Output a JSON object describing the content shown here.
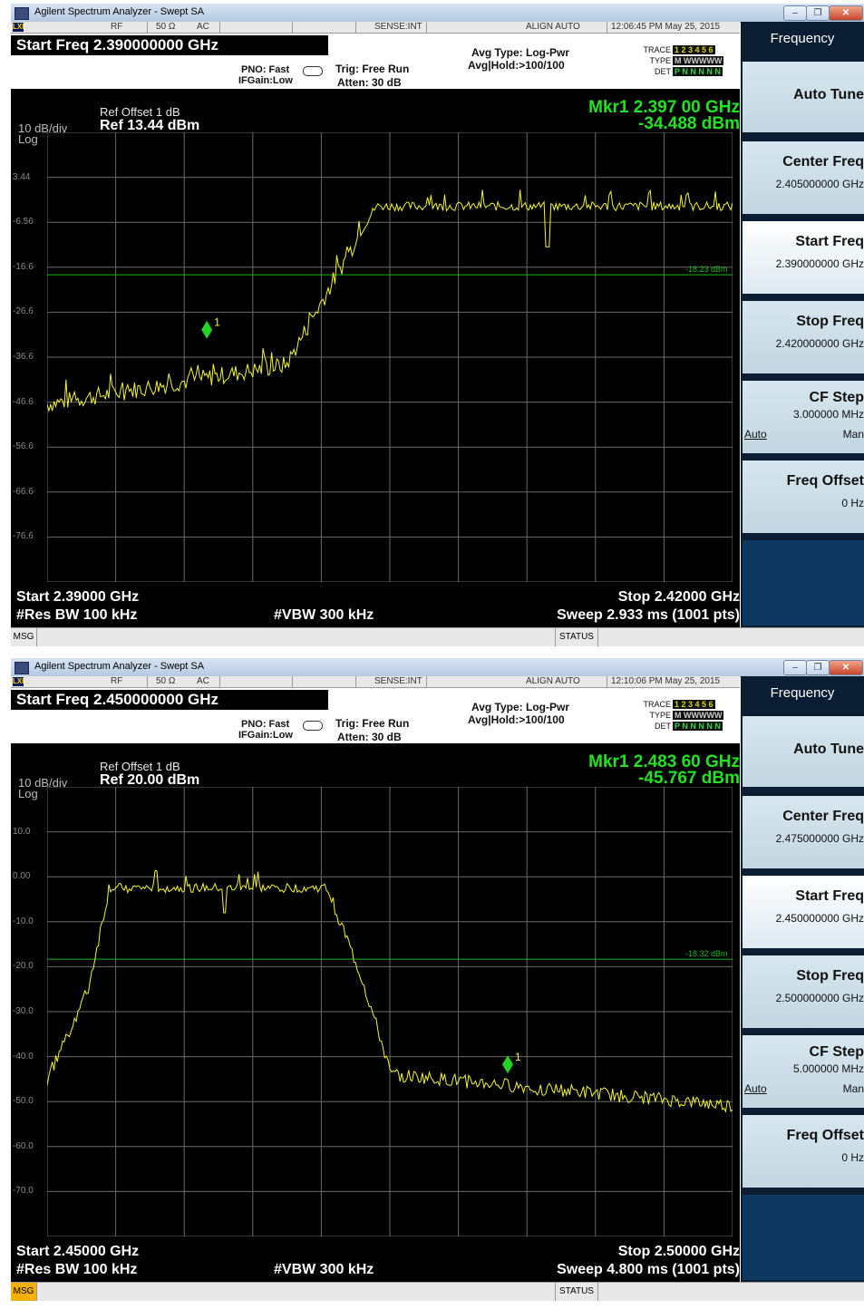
{
  "panels": [
    {
      "window_title": "Agilent Spectrum Analyzer - Swept SA",
      "strip": {
        "rf": "RF",
        "ohm": "50 Ω",
        "ac": "AC",
        "sense": "SENSE:INT",
        "align": "ALIGN AUTO",
        "timestamp": "12:06:45 PM May 25, 2015"
      },
      "start_freq_title": "Start Freq 2.390000000 GHz",
      "pno": "PNO: Fast",
      "ifgain": "IFGain:Low",
      "trig": "Trig: Free Run",
      "atten": "Atten: 30 dB",
      "avg_type": "Avg Type: Log-Pwr",
      "avg_hold": "Avg|Hold:>100/100",
      "trace": {
        "trace_label": "TRACE",
        "type_label": "TYPE",
        "det_label": "DET",
        "trace_val": "1 2 3 4 5 6",
        "type_val": "M WWWWW",
        "det_val": "P N N N N N"
      },
      "ref_offset": "Ref Offset 1 dB",
      "scale": "10 dB/div",
      "ref": "Ref 13.44 dBm",
      "log": "Log",
      "mkr_freq": "Mkr1 2.397 00 GHz",
      "mkr_level": "-34.488 dBm",
      "y_ticks": [
        "3.44",
        "-6.56",
        "-16.6",
        "-26.6",
        "-36.6",
        "-46.6",
        "-56.6",
        "-66.6",
        "-76.6"
      ],
      "limit_label": "-18.23 dBm",
      "marker_label": "1",
      "start": "Start 2.39000 GHz",
      "stop": "Stop 2.42000 GHz",
      "rbw": "#Res BW 100 kHz",
      "vbw": "#VBW 300 kHz",
      "sweep": "Sweep  2.933 ms (1001 pts)",
      "msg": "MSG",
      "status": "STATUS",
      "softkeys": {
        "title": "Frequency",
        "auto_tune": "Auto Tune",
        "center_label": "Center Freq",
        "center_value": "2.405000000 GHz",
        "start_label": "Start Freq",
        "start_value": "2.390000000 GHz",
        "stop_label": "Stop Freq",
        "stop_value": "2.420000000 GHz",
        "cf_label": "CF Step",
        "cf_value": "3.000000 MHz",
        "auto": "Auto",
        "man": "Man",
        "offset_label": "Freq Offset",
        "offset_value": "0 Hz"
      },
      "trace_model": {
        "ref_level": 13.44,
        "limit_level": -18.23,
        "marker_x": 0.233,
        "marker_level": -34.488,
        "color": "#f5f532"
      }
    },
    {
      "window_title": "Agilent Spectrum Analyzer - Swept SA",
      "strip": {
        "rf": "RF",
        "ohm": "50 Ω",
        "ac": "AC",
        "sense": "SENSE:INT",
        "align": "ALIGN AUTO",
        "timestamp": "12:10:06 PM May 25, 2015"
      },
      "start_freq_title": "Start Freq 2.450000000 GHz",
      "pno": "PNO: Fast",
      "ifgain": "IFGain:Low",
      "trig": "Trig: Free Run",
      "atten": "Atten: 30 dB",
      "avg_type": "Avg Type: Log-Pwr",
      "avg_hold": "Avg|Hold:>100/100",
      "trace": {
        "trace_label": "TRACE",
        "type_label": "TYPE",
        "det_label": "DET",
        "trace_val": "1 2 3 4 5 6",
        "type_val": "M WWWWW",
        "det_val": "P N N N N N"
      },
      "ref_offset": "Ref Offset 1 dB",
      "scale": "10 dB/div",
      "ref": "Ref 20.00 dBm",
      "log": "Log",
      "mkr_freq": "Mkr1 2.483 60 GHz",
      "mkr_level": "-45.767 dBm",
      "y_ticks": [
        "10.0",
        "0.00",
        "-10.0",
        "-20.0",
        "-30.0",
        "-40.0",
        "-50.0",
        "-60.0",
        "-70.0"
      ],
      "limit_label": "-18.32 dBm",
      "marker_label": "1",
      "start": "Start 2.45000 GHz",
      "stop": "Stop 2.50000 GHz",
      "rbw": "#Res BW 100 kHz",
      "vbw": "#VBW 300 kHz",
      "sweep": "Sweep  4.800 ms (1001 pts)",
      "msg": "MSG",
      "status": "STATUS",
      "softkeys": {
        "title": "Frequency",
        "auto_tune": "Auto Tune",
        "center_label": "Center Freq",
        "center_value": "2.475000000 GHz",
        "start_label": "Start Freq",
        "start_value": "2.450000000 GHz",
        "stop_label": "Stop Freq",
        "stop_value": "2.500000000 GHz",
        "cf_label": "CF Step",
        "cf_value": "5.000000 MHz",
        "auto": "Auto",
        "man": "Man",
        "offset_label": "Freq Offset",
        "offset_value": "0 Hz"
      },
      "trace_model": {
        "ref_level": 20.0,
        "limit_level": -18.32,
        "marker_x": 0.672,
        "marker_level": -45.767,
        "color": "#f5f532"
      }
    }
  ]
}
